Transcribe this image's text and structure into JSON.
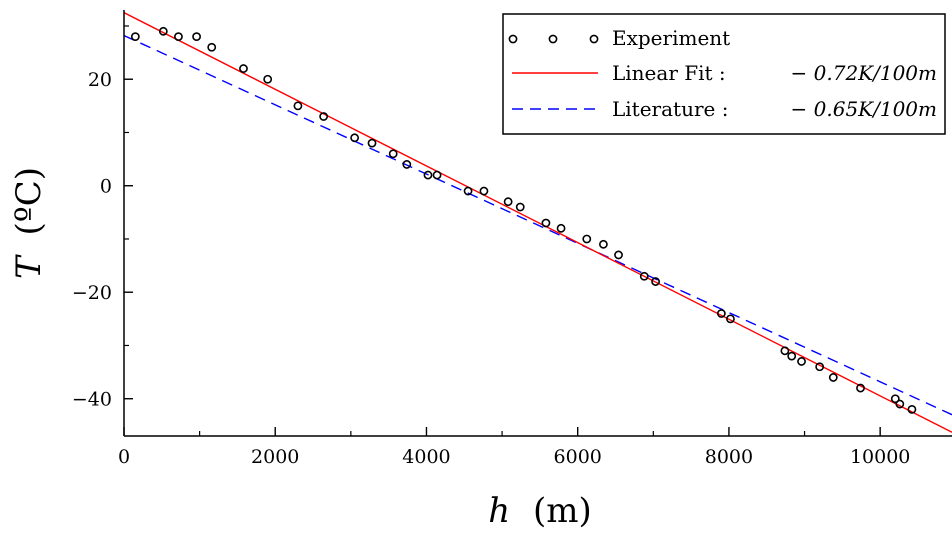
{
  "chart_data": {
    "type": "scatter",
    "xlabel_var": "h",
    "xlabel_unit": "(m)",
    "ylabel_var": "T",
    "ylabel_unit": "(ºC)",
    "xlim": [
      0,
      10950
    ],
    "ylim": [
      -47,
      33
    ],
    "xticks": [
      0,
      2000,
      4000,
      6000,
      8000,
      10000
    ],
    "xtick_labels": [
      "0",
      "2000",
      "4000",
      "6000",
      "8000",
      "10000"
    ],
    "yticks": [
      20,
      0,
      -20,
      -40
    ],
    "ytick_labels": [
      "20",
      "0",
      "−20",
      "−40"
    ],
    "grid": false,
    "legend_position": "top-right",
    "series": [
      {
        "name": "Experiment",
        "kind": "scatter",
        "marker": "open-circle",
        "color": "#000000",
        "points": [
          [
            150,
            28
          ],
          [
            520,
            29
          ],
          [
            720,
            28
          ],
          [
            960,
            28
          ],
          [
            1160,
            26
          ],
          [
            1580,
            22
          ],
          [
            1900,
            20
          ],
          [
            2300,
            15
          ],
          [
            2640,
            13
          ],
          [
            3050,
            9
          ],
          [
            3280,
            8
          ],
          [
            3560,
            6
          ],
          [
            3740,
            4
          ],
          [
            4020,
            2
          ],
          [
            4140,
            2
          ],
          [
            4550,
            -1
          ],
          [
            4760,
            -1
          ],
          [
            5080,
            -3
          ],
          [
            5240,
            -4
          ],
          [
            5580,
            -7
          ],
          [
            5780,
            -8
          ],
          [
            6120,
            -10
          ],
          [
            6340,
            -11
          ],
          [
            6540,
            -13
          ],
          [
            6880,
            -17
          ],
          [
            7030,
            -18
          ],
          [
            7900,
            -24
          ],
          [
            8020,
            -25
          ],
          [
            8740,
            -31
          ],
          [
            8830,
            -32
          ],
          [
            8960,
            -33
          ],
          [
            9200,
            -34
          ],
          [
            9380,
            -36
          ],
          [
            9740,
            -38
          ],
          [
            10200,
            -40
          ],
          [
            10260,
            -41
          ],
          [
            10420,
            -42
          ]
        ]
      },
      {
        "name": "Linear Fit :",
        "value": "− 0.72K/100m",
        "kind": "line",
        "style": "solid",
        "color": "#ff0000",
        "x": [
          0,
          10950
        ],
        "y": [
          32.5,
          -46.3
        ]
      },
      {
        "name": "Literature :",
        "value": "− 0.65K/100m",
        "kind": "line",
        "style": "dashed",
        "color": "#0000ff",
        "x": [
          0,
          10950
        ],
        "y": [
          28.2,
          -43.0
        ]
      }
    ]
  }
}
